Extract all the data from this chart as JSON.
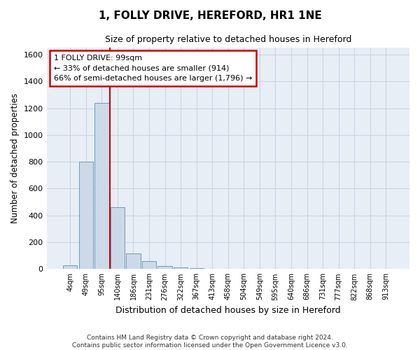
{
  "title": "1, FOLLY DRIVE, HEREFORD, HR1 1NE",
  "subtitle": "Size of property relative to detached houses in Hereford",
  "xlabel": "Distribution of detached houses by size in Hereford",
  "ylabel": "Number of detached properties",
  "footer_line1": "Contains HM Land Registry data © Crown copyright and database right 2024.",
  "footer_line2": "Contains public sector information licensed under the Open Government Licence v3.0.",
  "annotation_line1": "1 FOLLY DRIVE: 99sqm",
  "annotation_line2": "← 33% of detached houses are smaller (914)",
  "annotation_line3": "66% of semi-detached houses are larger (1,796) →",
  "categories": [
    "4sqm",
    "49sqm",
    "95sqm",
    "140sqm",
    "186sqm",
    "231sqm",
    "276sqm",
    "322sqm",
    "367sqm",
    "413sqm",
    "458sqm",
    "504sqm",
    "549sqm",
    "595sqm",
    "640sqm",
    "686sqm",
    "731sqm",
    "777sqm",
    "822sqm",
    "868sqm",
    "913sqm"
  ],
  "values": [
    30,
    800,
    1240,
    460,
    115,
    60,
    25,
    12,
    5,
    3,
    0,
    0,
    0,
    0,
    0,
    0,
    0,
    0,
    0,
    0,
    0
  ],
  "bar_color": "#ccd9e8",
  "bar_edge_color": "#6090b0",
  "grid_color": "#c8d4e4",
  "background_color": "#e8eef6",
  "vline_color": "#cc0000",
  "vline_x_index": 2,
  "annotation_box_color": "#cc0000",
  "ylim": [
    0,
    1650
  ],
  "yticks": [
    0,
    200,
    400,
    600,
    800,
    1000,
    1200,
    1400,
    1600
  ]
}
